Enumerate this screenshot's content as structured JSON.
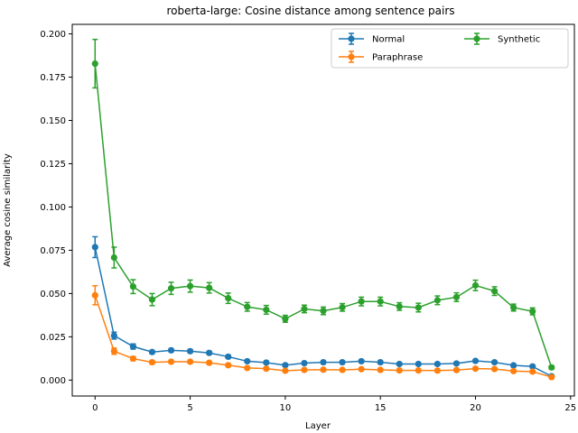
{
  "chart_data": {
    "type": "line",
    "title": "roberta-large: Cosine distance among sentence pairs",
    "xlabel": "Layer",
    "ylabel": "Average cosine similarity",
    "xlim": [
      -1.2,
      25.2
    ],
    "ylim": [
      -0.0092,
      0.2055
    ],
    "xticks": [
      0,
      5,
      10,
      15,
      20,
      25
    ],
    "yticks": [
      0.0,
      0.025,
      0.05,
      0.075,
      0.1,
      0.125,
      0.15,
      0.175,
      0.2
    ],
    "xtick_labels": [
      "0",
      "5",
      "10",
      "15",
      "20",
      "25"
    ],
    "ytick_labels": [
      "0.000",
      "0.025",
      "0.050",
      "0.075",
      "0.100",
      "0.125",
      "0.150",
      "0.175",
      "0.200"
    ],
    "legend_position": "top-right",
    "grid": false,
    "x": [
      0,
      1,
      2,
      3,
      4,
      5,
      6,
      7,
      8,
      9,
      10,
      11,
      12,
      13,
      14,
      15,
      16,
      17,
      18,
      19,
      20,
      21,
      22,
      23,
      24
    ],
    "series": [
      {
        "name": "Normal",
        "color": "#1f77b4",
        "values": [
          0.0768,
          0.0257,
          0.0194,
          0.0162,
          0.0172,
          0.0167,
          0.0157,
          0.0135,
          0.0109,
          0.0101,
          0.0086,
          0.0098,
          0.0103,
          0.0103,
          0.0109,
          0.0103,
          0.0093,
          0.0093,
          0.0093,
          0.0096,
          0.0111,
          0.0103,
          0.0085,
          0.0079,
          0.0022
        ],
        "errors": [
          0.006,
          0.002,
          0.0015,
          0.001,
          0.001,
          0.001,
          0.001,
          0.001,
          0.0008,
          0.0008,
          0.0008,
          0.0008,
          0.0008,
          0.0008,
          0.0008,
          0.0008,
          0.0008,
          0.0008,
          0.0008,
          0.0008,
          0.0008,
          0.0008,
          0.0008,
          0.0008,
          0.0005
        ]
      },
      {
        "name": "Paraphrase",
        "color": "#ff7f0e",
        "values": [
          0.049,
          0.0167,
          0.0124,
          0.0103,
          0.0106,
          0.0106,
          0.01,
          0.0086,
          0.007,
          0.0066,
          0.0054,
          0.0059,
          0.006,
          0.0059,
          0.0063,
          0.0059,
          0.0056,
          0.0056,
          0.0055,
          0.0058,
          0.0066,
          0.0064,
          0.0052,
          0.0049,
          0.0017
        ],
        "errors": [
          0.0055,
          0.0018,
          0.0012,
          0.001,
          0.0009,
          0.0009,
          0.0009,
          0.0008,
          0.0007,
          0.0007,
          0.0006,
          0.0006,
          0.0006,
          0.0006,
          0.0006,
          0.0006,
          0.0006,
          0.0006,
          0.0006,
          0.0006,
          0.0006,
          0.0006,
          0.0006,
          0.0006,
          0.0004
        ]
      },
      {
        "name": "Synthetic",
        "color": "#2ca02c",
        "values": [
          0.1828,
          0.0708,
          0.054,
          0.0465,
          0.053,
          0.0543,
          0.0533,
          0.0473,
          0.0423,
          0.0406,
          0.0354,
          0.0411,
          0.04,
          0.042,
          0.0454,
          0.0454,
          0.0425,
          0.0419,
          0.0461,
          0.0479,
          0.0547,
          0.0514,
          0.0419,
          0.0397,
          0.0073
        ],
        "errors": [
          0.014,
          0.006,
          0.004,
          0.0035,
          0.0035,
          0.0035,
          0.003,
          0.003,
          0.0025,
          0.0025,
          0.002,
          0.0022,
          0.0022,
          0.0022,
          0.0025,
          0.0025,
          0.0022,
          0.0025,
          0.0025,
          0.0025,
          0.003,
          0.0025,
          0.002,
          0.002,
          0.001
        ]
      }
    ]
  }
}
